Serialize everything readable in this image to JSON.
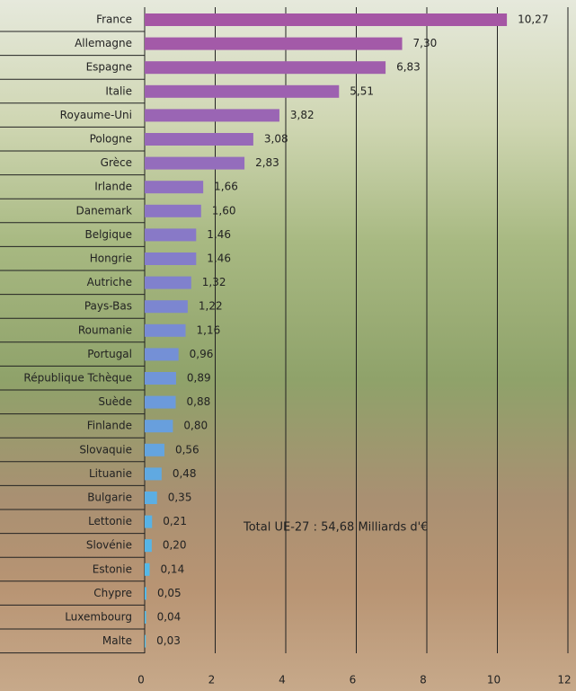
{
  "chart_data": {
    "type": "barh",
    "categories": [
      "France",
      "Allemagne",
      "Espagne",
      "Italie",
      "Royaume-Uni",
      "Pologne",
      "Grèce",
      "Irlande",
      "Danemark",
      "Belgique",
      "Hongrie",
      "Autriche",
      "Pays-Bas",
      "Roumanie",
      "Portugal",
      "République Tchèque",
      "Suède",
      "Finlande",
      "Slovaquie",
      "Lituanie",
      "Bulgarie",
      "Lettonie",
      "Slovénie",
      "Estonie",
      "Chypre",
      "Luxembourg",
      "Malte"
    ],
    "values": [
      10.27,
      7.3,
      6.83,
      5.51,
      3.82,
      3.08,
      2.83,
      1.66,
      1.6,
      1.46,
      1.46,
      1.32,
      1.22,
      1.16,
      0.96,
      0.89,
      0.88,
      0.8,
      0.56,
      0.48,
      0.35,
      0.21,
      0.2,
      0.14,
      0.05,
      0.04,
      0.03
    ],
    "value_labels": [
      "10,27",
      "7,30",
      "6,83",
      "5,51",
      "3,82",
      "3,08",
      "2,83",
      "1,66",
      "1,60",
      "1,46",
      "1,46",
      "1,32",
      "1,22",
      "1,16",
      "0,96",
      "0,89",
      "0,88",
      "0,80",
      "0,56",
      "0,48",
      "0,35",
      "0,21",
      "0,20",
      "0,14",
      "0,05",
      "0,04",
      "0,03"
    ],
    "colors": [
      "#a556a4",
      "#a35aa8",
      "#a05eac",
      "#9d61b0",
      "#9a65b4",
      "#9769b8",
      "#946dbc",
      "#9071c0",
      "#8c75c4",
      "#8879c7",
      "#847dca",
      "#8081cd",
      "#7c86d0",
      "#788bd3",
      "#7490d6",
      "#7095d9",
      "#6c9adb",
      "#689fdd",
      "#64a4df",
      "#60a9e1",
      "#5caee3",
      "#58b2e5",
      "#56b5e6",
      "#54b8e7",
      "#53bae8",
      "#52bce9",
      "#51bee9"
    ],
    "annotation": "Total UE-27 : 54,68 Milliards d'€",
    "xlim": [
      0,
      12
    ],
    "xticks": [
      0,
      2,
      4,
      6,
      8,
      10,
      12
    ],
    "grid": true
  }
}
